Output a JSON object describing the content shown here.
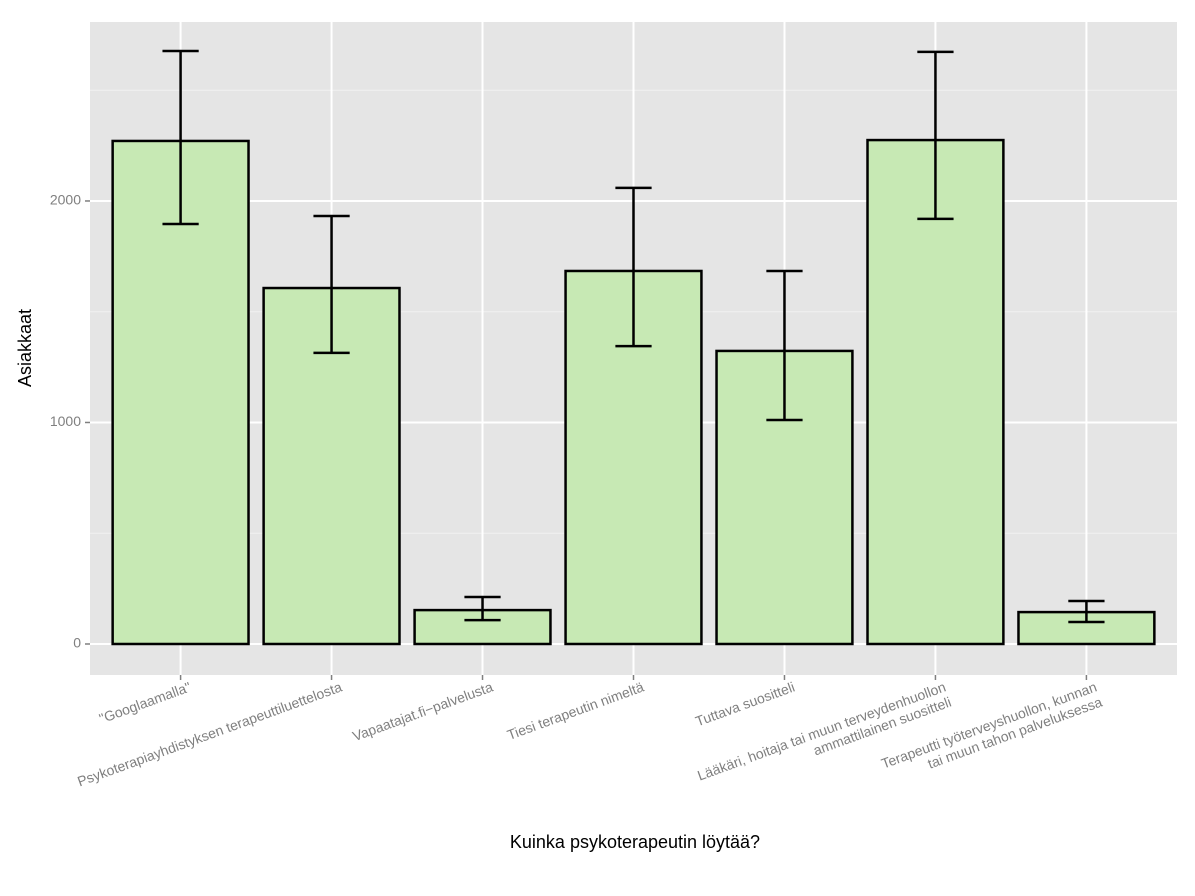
{
  "chart_data": {
    "type": "bar",
    "x_label": "Kuinka psykoterapeutin löytää?",
    "y_label": "Asiakkaat",
    "categories": [
      "\"Googlaamalla\"",
      "Psykoterapiayhdistyksen terapeuttiluettelosta",
      "Vapaatajat.fi−palvelusta",
      "Tiesi terapeutin nimeltä",
      "Tuttava suositteli",
      "Lääkäri, hoitaja tai muun terveydenhuollon\nammattilainen suositteli",
      "Terapeutti työterveyshuollon, kunnan\ntai muun tahon palveluksessa"
    ],
    "values": [
      2271,
      1607,
      153,
      1684,
      1323,
      2275,
      144
    ],
    "lower": [
      1896,
      1314,
      108,
      1345,
      1011,
      1919,
      99
    ],
    "upper": [
      2677,
      1932,
      212,
      2059,
      1684,
      2673,
      194
    ],
    "color": "#c7e9b4",
    "ylim": [
      -140,
      2808
    ],
    "yticks": [
      0,
      1000,
      2000
    ],
    "grid": true
  }
}
